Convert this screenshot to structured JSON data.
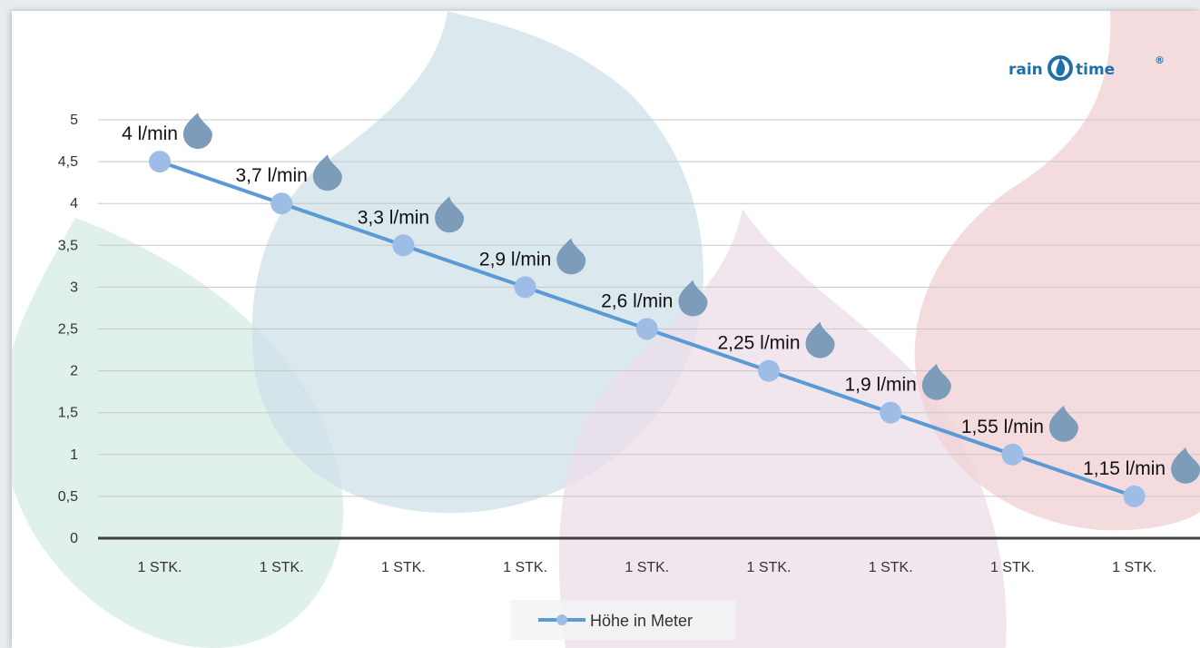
{
  "brand": {
    "logo_left": "rain",
    "logo_right": "time",
    "logo_mark": "®",
    "logo_color": "#1f6fa8"
  },
  "chart_data": {
    "type": "line",
    "title": "",
    "xlabel": "",
    "ylabel": "",
    "categories": [
      "1 STK.",
      "1 STK.",
      "1 STK.",
      "1 STK.",
      "1 STK.",
      "1 STK.",
      "1 STK.",
      "1 STK.",
      "1 STK."
    ],
    "series": [
      {
        "name": "Höhe in Meter",
        "values": [
          4.5,
          4,
          3.5,
          3,
          2.5,
          2,
          1.5,
          1,
          0.5
        ],
        "color": "#5b9bd5",
        "marker_color": "#9dbde6"
      }
    ],
    "data_labels": [
      "4 l/min",
      "3,7 l/min",
      "3,3 l/min",
      "2,9 l/min",
      "2,6 l/min",
      "2,25 l/min",
      "1,9 l/min",
      "1,55 l/min",
      "1,15 l/min"
    ],
    "data_label_icon": "water-drop-icon",
    "y_ticks": [
      "0",
      "0,5",
      "1",
      "1,5",
      "2",
      "2,5",
      "3",
      "3,5",
      "4",
      "4,5",
      "5"
    ],
    "ylim": [
      0,
      5
    ],
    "grid": true,
    "legend": "bottom-center"
  }
}
